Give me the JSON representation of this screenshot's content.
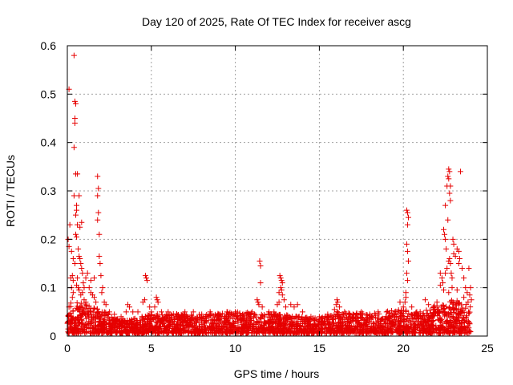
{
  "chart_data": {
    "type": "scatter",
    "title": "Day 120 of 2025, Rate Of TEC Index for receiver ascg",
    "xlabel": "GPS time / hours",
    "ylabel": "ROTI / TECUs",
    "xlim": [
      0,
      25
    ],
    "ylim": [
      0,
      0.6
    ],
    "xticks": [
      0,
      5,
      10,
      15,
      20,
      25
    ],
    "xtick_labels": [
      "0",
      "5",
      "10",
      "15",
      "20",
      "25"
    ],
    "yticks": [
      0,
      0.1,
      0.2,
      0.3,
      0.4,
      0.5,
      0.6
    ],
    "ytick_labels": [
      "0",
      "0.1",
      "0.2",
      "0.3",
      "0.4",
      "0.5",
      "0.6"
    ],
    "grid": true,
    "marker": "+",
    "color": "#e60000",
    "series": [
      {
        "name": "ROTI",
        "points": [
          [
            0.1,
            0.51
          ],
          [
            0.15,
            0.23
          ],
          [
            0.05,
            0.2
          ],
          [
            0.1,
            0.185
          ],
          [
            0.1,
            0.06
          ],
          [
            0.2,
            0.12
          ],
          [
            0.25,
            0.1
          ],
          [
            0.3,
            0.08
          ],
          [
            0.35,
            0.09
          ],
          [
            0.4,
            0.58
          ],
          [
            0.45,
            0.485
          ],
          [
            0.5,
            0.48
          ],
          [
            0.45,
            0.45
          ],
          [
            0.45,
            0.44
          ],
          [
            0.4,
            0.39
          ],
          [
            0.5,
            0.335
          ],
          [
            0.4,
            0.29
          ],
          [
            0.6,
            0.335
          ],
          [
            0.55,
            0.27
          ],
          [
            0.55,
            0.26
          ],
          [
            0.5,
            0.25
          ],
          [
            0.6,
            0.23
          ],
          [
            0.5,
            0.21
          ],
          [
            0.55,
            0.205
          ],
          [
            0.65,
            0.18
          ],
          [
            0.7,
            0.165
          ],
          [
            0.75,
            0.16
          ],
          [
            0.8,
            0.15
          ],
          [
            0.85,
            0.14
          ],
          [
            0.9,
            0.13
          ],
          [
            0.7,
            0.29
          ],
          [
            0.85,
            0.235
          ],
          [
            0.75,
            0.225
          ],
          [
            0.95,
            0.11
          ],
          [
            1.0,
            0.1
          ],
          [
            0.6,
            0.12
          ],
          [
            0.65,
            0.1
          ],
          [
            0.9,
            0.09
          ],
          [
            1.0,
            0.075
          ],
          [
            1.1,
            0.07
          ],
          [
            0.3,
            0.125
          ],
          [
            0.35,
            0.115
          ],
          [
            0.55,
            0.105
          ],
          [
            0.7,
            0.095
          ],
          [
            0.8,
            0.085
          ],
          [
            0.25,
            0.175
          ],
          [
            0.35,
            0.16
          ],
          [
            0.45,
            0.15
          ],
          [
            1.3,
            0.1
          ],
          [
            1.4,
            0.09
          ],
          [
            1.5,
            0.085
          ],
          [
            1.6,
            0.08
          ],
          [
            1.7,
            0.07
          ],
          [
            1.8,
            0.33
          ],
          [
            1.85,
            0.305
          ],
          [
            1.8,
            0.29
          ],
          [
            1.85,
            0.255
          ],
          [
            1.8,
            0.24
          ],
          [
            1.9,
            0.21
          ],
          [
            1.9,
            0.165
          ],
          [
            1.95,
            0.15
          ],
          [
            2.0,
            0.125
          ],
          [
            2.1,
            0.1
          ],
          [
            2.05,
            0.09
          ],
          [
            2.2,
            0.07
          ],
          [
            2.3,
            0.065
          ],
          [
            1.6,
            0.12
          ],
          [
            1.4,
            0.115
          ],
          [
            1.2,
            0.13
          ],
          [
            1.1,
            0.12
          ],
          [
            2.5,
            0.05
          ],
          [
            2.8,
            0.045
          ],
          [
            3.2,
            0.04
          ],
          [
            3.5,
            0.05
          ],
          [
            3.6,
            0.065
          ],
          [
            3.7,
            0.06
          ],
          [
            3.9,
            0.05
          ],
          [
            4.2,
            0.05
          ],
          [
            4.5,
            0.07
          ],
          [
            4.6,
            0.075
          ],
          [
            4.65,
            0.125
          ],
          [
            4.7,
            0.12
          ],
          [
            4.75,
            0.115
          ],
          [
            4.9,
            0.06
          ],
          [
            5.0,
            0.05
          ],
          [
            5.2,
            0.06
          ],
          [
            5.3,
            0.08
          ],
          [
            5.35,
            0.075
          ],
          [
            5.4,
            0.07
          ],
          [
            5.6,
            0.05
          ],
          [
            6.0,
            0.05
          ],
          [
            6.5,
            0.045
          ],
          [
            7.0,
            0.05
          ],
          [
            7.5,
            0.05
          ],
          [
            8.0,
            0.045
          ],
          [
            8.5,
            0.05
          ],
          [
            9.0,
            0.045
          ],
          [
            9.5,
            0.05
          ],
          [
            10.0,
            0.05
          ],
          [
            10.5,
            0.045
          ],
          [
            11.0,
            0.05
          ],
          [
            11.3,
            0.075
          ],
          [
            11.35,
            0.07
          ],
          [
            11.4,
            0.065
          ],
          [
            11.45,
            0.155
          ],
          [
            11.5,
            0.145
          ],
          [
            11.5,
            0.11
          ],
          [
            11.6,
            0.06
          ],
          [
            12.0,
            0.05
          ],
          [
            12.3,
            0.05
          ],
          [
            12.6,
            0.09
          ],
          [
            12.65,
            0.125
          ],
          [
            12.7,
            0.12
          ],
          [
            12.75,
            0.115
          ],
          [
            12.8,
            0.11
          ],
          [
            12.7,
            0.1
          ],
          [
            12.75,
            0.095
          ],
          [
            12.8,
            0.085
          ],
          [
            12.9,
            0.075
          ],
          [
            12.6,
            0.07
          ],
          [
            12.5,
            0.065
          ],
          [
            13.0,
            0.06
          ],
          [
            13.3,
            0.065
          ],
          [
            13.5,
            0.06
          ],
          [
            13.7,
            0.065
          ],
          [
            14.0,
            0.05
          ],
          [
            14.5,
            0.04
          ],
          [
            15.0,
            0.04
          ],
          [
            15.5,
            0.045
          ],
          [
            15.9,
            0.055
          ],
          [
            16.0,
            0.065
          ],
          [
            16.05,
            0.075
          ],
          [
            16.1,
            0.07
          ],
          [
            16.2,
            0.06
          ],
          [
            16.5,
            0.05
          ],
          [
            17.0,
            0.045
          ],
          [
            17.5,
            0.05
          ],
          [
            18.0,
            0.045
          ],
          [
            18.5,
            0.05
          ],
          [
            19.0,
            0.05
          ],
          [
            19.5,
            0.05
          ],
          [
            19.8,
            0.07
          ],
          [
            20.0,
            0.06
          ],
          [
            20.1,
            0.07
          ],
          [
            20.15,
            0.08
          ],
          [
            20.2,
            0.26
          ],
          [
            20.25,
            0.255
          ],
          [
            20.3,
            0.245
          ],
          [
            20.25,
            0.23
          ],
          [
            20.2,
            0.19
          ],
          [
            20.25,
            0.175
          ],
          [
            20.3,
            0.155
          ],
          [
            20.2,
            0.13
          ],
          [
            20.25,
            0.115
          ],
          [
            20.15,
            0.09
          ],
          [
            20.5,
            0.06
          ],
          [
            20.8,
            0.05
          ],
          [
            21.0,
            0.05
          ],
          [
            21.3,
            0.075
          ],
          [
            21.5,
            0.065
          ],
          [
            21.8,
            0.06
          ],
          [
            22.0,
            0.07
          ],
          [
            22.2,
            0.13
          ],
          [
            22.3,
            0.12
          ],
          [
            22.35,
            0.11
          ],
          [
            22.4,
            0.22
          ],
          [
            22.45,
            0.21
          ],
          [
            22.5,
            0.2
          ],
          [
            22.5,
            0.27
          ],
          [
            22.55,
            0.18
          ],
          [
            22.6,
            0.31
          ],
          [
            22.65,
            0.33
          ],
          [
            22.7,
            0.345
          ],
          [
            22.75,
            0.34
          ],
          [
            22.7,
            0.325
          ],
          [
            22.8,
            0.31
          ],
          [
            22.75,
            0.295
          ],
          [
            22.8,
            0.28
          ],
          [
            22.65,
            0.24
          ],
          [
            22.7,
            0.155
          ],
          [
            22.75,
            0.16
          ],
          [
            22.8,
            0.15
          ],
          [
            22.6,
            0.14
          ],
          [
            22.5,
            0.13
          ],
          [
            22.85,
            0.13
          ],
          [
            22.9,
            0.12
          ],
          [
            22.95,
            0.2
          ],
          [
            23.0,
            0.19
          ],
          [
            23.0,
            0.17
          ],
          [
            23.1,
            0.165
          ],
          [
            23.2,
            0.18
          ],
          [
            23.3,
            0.175
          ],
          [
            23.35,
            0.16
          ],
          [
            23.4,
            0.34
          ],
          [
            23.3,
            0.15
          ],
          [
            23.5,
            0.14
          ],
          [
            23.6,
            0.12
          ],
          [
            23.7,
            0.1
          ],
          [
            23.8,
            0.09
          ],
          [
            23.9,
            0.14
          ],
          [
            24.0,
            0.1
          ],
          [
            23.95,
            0.085
          ],
          [
            24.05,
            0.075
          ],
          [
            23.85,
            0.07
          ],
          [
            23.6,
            0.08
          ],
          [
            23.2,
            0.095
          ],
          [
            22.9,
            0.1
          ],
          [
            22.7,
            0.09
          ],
          [
            22.4,
            0.095
          ],
          [
            22.2,
            0.105
          ]
        ]
      }
    ],
    "dense_band": {
      "description": "continuous cloud of low ROTI values covering the whole day",
      "x_range": [
        0,
        24
      ],
      "profile_x": [
        0,
        1,
        2,
        3,
        4,
        5,
        6,
        8,
        10,
        12,
        14,
        15,
        16,
        18,
        20,
        21,
        22,
        23,
        24
      ],
      "profile_y_max": [
        0.07,
        0.06,
        0.05,
        0.03,
        0.03,
        0.04,
        0.04,
        0.04,
        0.045,
        0.04,
        0.035,
        0.03,
        0.045,
        0.04,
        0.05,
        0.04,
        0.06,
        0.07,
        0.06
      ]
    }
  }
}
